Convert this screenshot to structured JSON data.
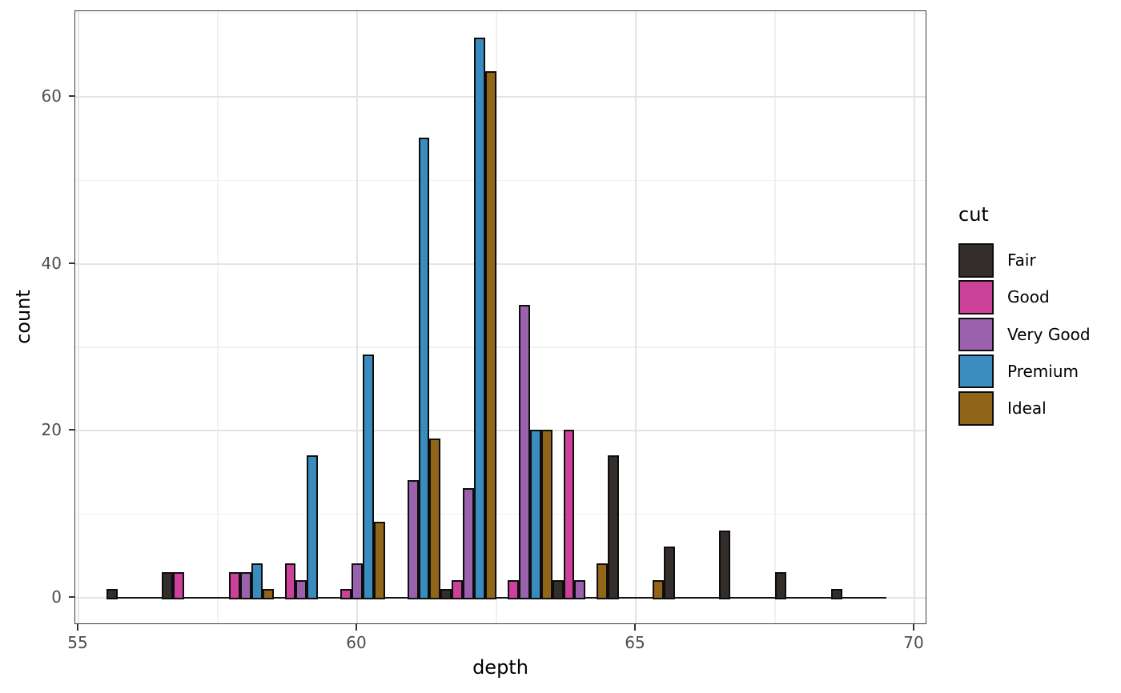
{
  "figure": {
    "x_axis_title": "depth",
    "y_axis_title": "count",
    "legend_title": "cut"
  },
  "chart_data": {
    "type": "bar",
    "subtype": "dodged-histogram",
    "title": "",
    "xlabel": "depth",
    "ylabel": "count",
    "legend_title": "cut",
    "legend_position": "right",
    "grid": "on",
    "xlim": [
      54.9,
      70.25
    ],
    "ylim": [
      -3.4,
      70.4
    ],
    "x_tick_labels": [
      "55",
      "60",
      "65",
      "70"
    ],
    "x_ticks": [
      55,
      60,
      65,
      70
    ],
    "x_minor_ticks": [
      57.5,
      62.5,
      67.5
    ],
    "y_tick_labels": [
      "0",
      "20",
      "40",
      "60"
    ],
    "y_ticks": [
      0,
      20,
      40,
      60
    ],
    "y_minor_ticks": [
      10,
      30,
      50,
      70
    ],
    "binwidth": 1,
    "baseline_extent": [
      55.5,
      69.5
    ],
    "series": [
      {
        "name": "Fair",
        "color": "#332E2C"
      },
      {
        "name": "Good",
        "color": "#CC4199"
      },
      {
        "name": "Very Good",
        "color": "#9A62AC"
      },
      {
        "name": "Premium",
        "color": "#3A8CBE"
      },
      {
        "name": "Ideal",
        "color": "#916619"
      }
    ],
    "bins": [
      {
        "center": 56,
        "counts": {
          "Fair": 1
        }
      },
      {
        "center": 57,
        "counts": {
          "Fair": 3,
          "Good": 3
        }
      },
      {
        "center": 58,
        "counts": {
          "Good": 3,
          "Very Good": 3,
          "Premium": 4,
          "Ideal": 1
        }
      },
      {
        "center": 59,
        "counts": {
          "Good": 4,
          "Very Good": 2,
          "Premium": 17
        }
      },
      {
        "center": 60,
        "counts": {
          "Good": 1,
          "Very Good": 4,
          "Premium": 29,
          "Ideal": 9
        }
      },
      {
        "center": 61,
        "counts": {
          "Very Good": 14,
          "Premium": 55,
          "Ideal": 19
        }
      },
      {
        "center": 62,
        "counts": {
          "Fair": 1,
          "Good": 2,
          "Very Good": 13,
          "Premium": 67,
          "Ideal": 63
        }
      },
      {
        "center": 63,
        "counts": {
          "Good": 2,
          "Very Good": 35,
          "Premium": 20,
          "Ideal": 20
        }
      },
      {
        "center": 64,
        "counts": {
          "Fair": 2,
          "Good": 20,
          "Very Good": 2,
          "Ideal": 4
        }
      },
      {
        "center": 65,
        "counts": {
          "Fair": 17,
          "Ideal": 2
        }
      },
      {
        "center": 66,
        "counts": {
          "Fair": 6
        }
      },
      {
        "center": 67,
        "counts": {
          "Fair": 8
        }
      },
      {
        "center": 68,
        "counts": {
          "Fair": 3
        }
      },
      {
        "center": 69,
        "counts": {
          "Fair": 1
        }
      }
    ]
  }
}
